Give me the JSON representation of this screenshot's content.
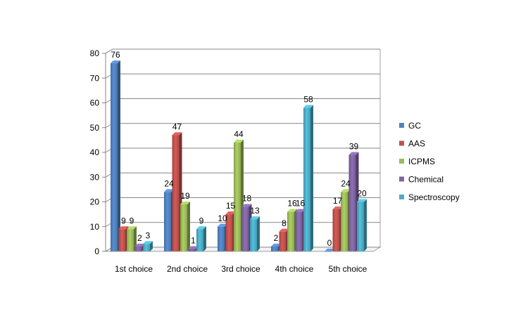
{
  "chart_data": {
    "type": "bar",
    "title": "",
    "xlabel": "",
    "ylabel": "",
    "categories": [
      "1st choice",
      "2nd choice",
      "3rd choice",
      "4th choice",
      "5th choice"
    ],
    "ylim": [
      0,
      80
    ],
    "yticks": [
      0,
      10,
      20,
      30,
      40,
      50,
      60,
      70,
      80
    ],
    "grid": true,
    "legend_position": "right",
    "series": [
      {
        "name": "GC",
        "values": [
          76,
          24,
          10,
          2,
          0
        ],
        "color": "#4F81BD"
      },
      {
        "name": "AAS",
        "values": [
          9,
          47,
          15,
          8,
          17
        ],
        "color": "#C0504D"
      },
      {
        "name": "ICPMS",
        "values": [
          9,
          19,
          44,
          16,
          24
        ],
        "color": "#9BBB59"
      },
      {
        "name": "Chemical",
        "values": [
          2,
          1,
          18,
          16,
          39
        ],
        "color": "#8064A2"
      },
      {
        "name": "Spectroscopy",
        "values": [
          3,
          9,
          13,
          58,
          20
        ],
        "color": "#4BACC6"
      }
    ]
  }
}
